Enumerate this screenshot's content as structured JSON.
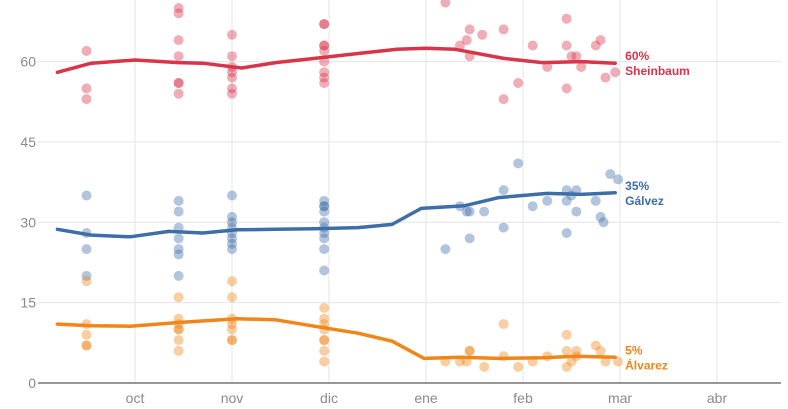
{
  "chart_data": {
    "type": "scatter",
    "title": "",
    "xlabel": "",
    "ylabel": "",
    "x_domain": [
      -0.75,
      6.5
    ],
    "ylim": [
      0,
      70
    ],
    "y_ticks": [
      0,
      15,
      30,
      45,
      60
    ],
    "x_ticks": [
      {
        "value": 0,
        "label": "oct"
      },
      {
        "value": 1,
        "label": "nov"
      },
      {
        "value": 2,
        "label": "dic"
      },
      {
        "value": 3,
        "label": "ene"
      },
      {
        "value": 4,
        "label": "feb"
      },
      {
        "value": 5,
        "label": "mar"
      },
      {
        "value": 6,
        "label": "abr"
      }
    ],
    "grid": true,
    "series": [
      {
        "name": "Sheinbaum",
        "end_label": "60%",
        "color": "#d8344a",
        "trend": [
          [
            -0.8,
            58
          ],
          [
            -0.45,
            59.7
          ],
          [
            0,
            60.3
          ],
          [
            0.45,
            59.8
          ],
          [
            0.7,
            59.7
          ],
          [
            1.1,
            58.8
          ],
          [
            1.45,
            59.8
          ],
          [
            1.85,
            60.6
          ],
          [
            2.3,
            61.5
          ],
          [
            2.7,
            62.3
          ],
          [
            3.0,
            62.5
          ],
          [
            3.3,
            62.3
          ],
          [
            3.8,
            60.6
          ],
          [
            4.2,
            59.8
          ],
          [
            4.6,
            60
          ],
          [
            4.95,
            59.7
          ]
        ],
        "points": [
          [
            -0.5,
            62
          ],
          [
            -0.5,
            55
          ],
          [
            -0.5,
            53
          ],
          [
            0.45,
            70
          ],
          [
            0.45,
            69
          ],
          [
            0.45,
            64
          ],
          [
            0.45,
            61
          ],
          [
            0.45,
            56
          ],
          [
            0.45,
            56
          ],
          [
            0.45,
            54
          ],
          [
            1.0,
            65
          ],
          [
            1.0,
            61
          ],
          [
            1.0,
            59
          ],
          [
            1.0,
            58
          ],
          [
            1.0,
            57
          ],
          [
            1.0,
            55
          ],
          [
            1.0,
            54
          ],
          [
            1.95,
            67
          ],
          [
            1.95,
            67
          ],
          [
            1.95,
            63
          ],
          [
            1.95,
            63
          ],
          [
            1.95,
            62
          ],
          [
            1.95,
            60
          ],
          [
            1.95,
            58
          ],
          [
            1.95,
            57
          ],
          [
            1.95,
            56
          ],
          [
            3.2,
            71
          ],
          [
            3.35,
            63
          ],
          [
            3.42,
            64
          ],
          [
            3.45,
            66
          ],
          [
            3.45,
            61
          ],
          [
            3.58,
            65
          ],
          [
            3.8,
            66
          ],
          [
            3.8,
            53
          ],
          [
            3.95,
            56
          ],
          [
            4.1,
            63
          ],
          [
            4.25,
            59
          ],
          [
            4.45,
            68
          ],
          [
            4.45,
            63
          ],
          [
            4.45,
            55
          ],
          [
            4.5,
            61
          ],
          [
            4.55,
            61
          ],
          [
            4.6,
            59
          ],
          [
            4.75,
            63
          ],
          [
            4.8,
            64
          ],
          [
            4.85,
            57
          ],
          [
            4.95,
            58
          ]
        ]
      },
      {
        "name": "Gálvez",
        "end_label": "35%",
        "color": "#3e6ea8",
        "trend": [
          [
            -0.8,
            28.7
          ],
          [
            -0.45,
            27.6
          ],
          [
            -0.05,
            27.3
          ],
          [
            0.35,
            28.3
          ],
          [
            0.7,
            28.0
          ],
          [
            1.05,
            28.6
          ],
          [
            1.45,
            28.7
          ],
          [
            1.85,
            28.8
          ],
          [
            2.3,
            29.0
          ],
          [
            2.65,
            29.6
          ],
          [
            2.95,
            32.6
          ],
          [
            3.4,
            33.1
          ],
          [
            3.75,
            34.6
          ],
          [
            4.25,
            35.4
          ],
          [
            4.6,
            35.2
          ],
          [
            4.95,
            35.5
          ]
        ],
        "points": [
          [
            -0.5,
            35
          ],
          [
            -0.5,
            28
          ],
          [
            -0.5,
            25
          ],
          [
            -0.5,
            20
          ],
          [
            0.45,
            34
          ],
          [
            0.45,
            32
          ],
          [
            0.45,
            29
          ],
          [
            0.45,
            27
          ],
          [
            0.45,
            25
          ],
          [
            0.45,
            24
          ],
          [
            0.45,
            20
          ],
          [
            1.0,
            35
          ],
          [
            1.0,
            31
          ],
          [
            1.0,
            30
          ],
          [
            1.0,
            29
          ],
          [
            1.0,
            28
          ],
          [
            1.0,
            27
          ],
          [
            1.0,
            26
          ],
          [
            1.0,
            25
          ],
          [
            1.95,
            34
          ],
          [
            1.95,
            33
          ],
          [
            1.95,
            33
          ],
          [
            1.95,
            32
          ],
          [
            1.95,
            30
          ],
          [
            1.95,
            29
          ],
          [
            1.95,
            28
          ],
          [
            1.95,
            27
          ],
          [
            1.95,
            25
          ],
          [
            1.95,
            21
          ],
          [
            3.2,
            25
          ],
          [
            3.35,
            33
          ],
          [
            3.42,
            32
          ],
          [
            3.45,
            32
          ],
          [
            3.45,
            27
          ],
          [
            3.6,
            32
          ],
          [
            3.8,
            36
          ],
          [
            3.8,
            29
          ],
          [
            3.95,
            41
          ],
          [
            4.1,
            33
          ],
          [
            4.25,
            34
          ],
          [
            4.45,
            36
          ],
          [
            4.45,
            34
          ],
          [
            4.45,
            28
          ],
          [
            4.5,
            35
          ],
          [
            4.55,
            36
          ],
          [
            4.55,
            32
          ],
          [
            4.75,
            34
          ],
          [
            4.8,
            31
          ],
          [
            4.83,
            30
          ],
          [
            4.9,
            39
          ],
          [
            4.98,
            38
          ]
        ]
      },
      {
        "name": "Álvarez",
        "end_label": "5%",
        "color": "#f08519",
        "trend": [
          [
            -0.8,
            11.0
          ],
          [
            -0.45,
            10.7
          ],
          [
            -0.05,
            10.6
          ],
          [
            0.45,
            11.3
          ],
          [
            1.05,
            12.0
          ],
          [
            1.45,
            11.8
          ],
          [
            1.95,
            10.3
          ],
          [
            2.3,
            9.3
          ],
          [
            2.65,
            7.8
          ],
          [
            2.98,
            4.6
          ],
          [
            3.35,
            4.8
          ],
          [
            3.75,
            4.6
          ],
          [
            4.2,
            4.7
          ],
          [
            4.55,
            5.0
          ],
          [
            4.95,
            4.8
          ]
        ],
        "points": [
          [
            -0.5,
            19
          ],
          [
            -0.5,
            11
          ],
          [
            -0.5,
            9
          ],
          [
            -0.5,
            7
          ],
          [
            -0.5,
            7
          ],
          [
            0.45,
            16
          ],
          [
            0.45,
            12
          ],
          [
            0.45,
            11
          ],
          [
            0.45,
            10
          ],
          [
            0.45,
            10
          ],
          [
            0.45,
            8
          ],
          [
            0.45,
            6
          ],
          [
            1.0,
            19
          ],
          [
            1.0,
            16
          ],
          [
            1.0,
            12
          ],
          [
            1.0,
            11
          ],
          [
            1.0,
            10
          ],
          [
            1.0,
            8
          ],
          [
            1.0,
            8
          ],
          [
            1.95,
            14
          ],
          [
            1.95,
            12
          ],
          [
            1.95,
            11
          ],
          [
            1.95,
            10
          ],
          [
            1.95,
            8
          ],
          [
            1.95,
            8
          ],
          [
            1.95,
            6
          ],
          [
            1.95,
            4
          ],
          [
            3.2,
            4
          ],
          [
            3.35,
            4
          ],
          [
            3.42,
            4
          ],
          [
            3.45,
            6
          ],
          [
            3.45,
            6
          ],
          [
            3.6,
            3
          ],
          [
            3.8,
            11
          ],
          [
            3.8,
            5
          ],
          [
            3.95,
            3
          ],
          [
            4.1,
            4
          ],
          [
            4.25,
            5
          ],
          [
            4.45,
            9
          ],
          [
            4.45,
            6
          ],
          [
            4.45,
            3
          ],
          [
            4.5,
            4
          ],
          [
            4.55,
            6
          ],
          [
            4.55,
            5
          ],
          [
            4.75,
            7
          ],
          [
            4.8,
            6
          ],
          [
            4.85,
            4
          ],
          [
            4.98,
            4
          ]
        ]
      }
    ]
  }
}
